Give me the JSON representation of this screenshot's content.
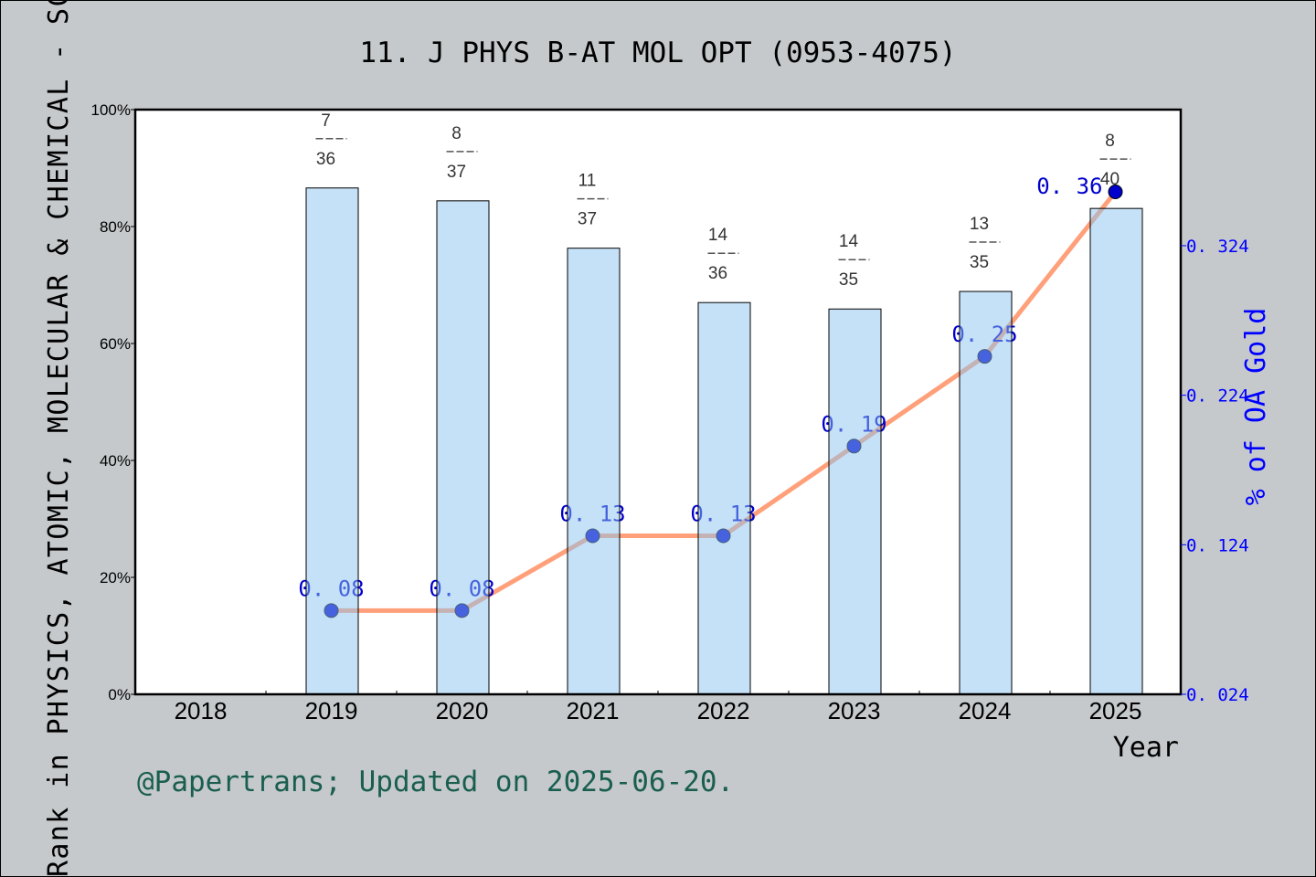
{
  "chart_data": {
    "type": "bar+line",
    "title": "11. J PHYS B-AT MOL OPT (0953-4075)",
    "xlabel": "Year",
    "ylabel": "Rank in PHYSICS, ATOMIC, MOLECULAR & CHEMICAL - SCI",
    "y2label": "% of OA Gold",
    "categories": [
      "2018",
      "2019",
      "2020",
      "2021",
      "2022",
      "2023",
      "2024",
      "2025"
    ],
    "xlim": [
      2017.5,
      2025.5
    ],
    "ylim": [
      0,
      100
    ],
    "y_ticks": [
      "0%",
      "20%",
      "40%",
      "60%",
      "80%",
      "100%"
    ],
    "y2lim": [
      0.024,
      0.415
    ],
    "y2_ticks": [
      "0. 024",
      "0. 124",
      "0. 224",
      "0. 324"
    ],
    "bars": {
      "values": [
        null,
        86.6,
        84.4,
        76.3,
        67.0,
        65.9,
        68.9,
        83.1
      ],
      "rank_labels": [
        null,
        [
          "7",
          "36"
        ],
        [
          "8",
          "37"
        ],
        [
          "11",
          "37"
        ],
        [
          "14",
          "36"
        ],
        [
          "14",
          "35"
        ],
        [
          "13",
          "35"
        ],
        [
          "8",
          "40"
        ]
      ],
      "color": "#c5e1f7"
    },
    "line": {
      "values": [
        null,
        0.08,
        0.08,
        0.13,
        0.13,
        0.19,
        0.25,
        0.36
      ],
      "labels": [
        null,
        "0. 08",
        "0. 08",
        "0. 13",
        "0. 13",
        "0. 19",
        "0. 25",
        "0. 36"
      ],
      "line_color": "#ffa07a",
      "marker_color": "#0000cd"
    },
    "grid": false
  },
  "footer": "@Papertrans; Updated on 2025-06-20."
}
